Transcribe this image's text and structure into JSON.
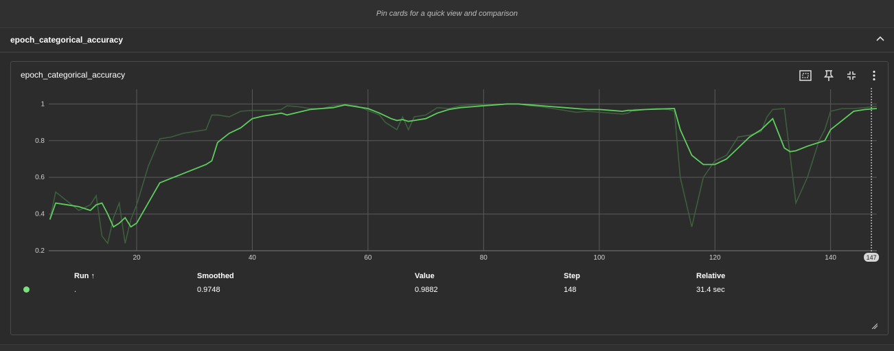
{
  "banner": {
    "text": "Pin cards for a quick view and comparison"
  },
  "group": {
    "title": "epoch_categorical_accuracy"
  },
  "card": {
    "title": "epoch_categorical_accuracy"
  },
  "icons": {
    "collapse": "chevron-up-icon",
    "fit": "fit-to-domain-icon",
    "pin": "pin-icon",
    "fullscreen": "exit-fullscreen-icon",
    "more": "more-vert-icon",
    "resize": "resize-handle-icon"
  },
  "colors": {
    "smoothed": "#5fce5f",
    "raw": "#3d5e3d",
    "run_dot": "#7ce17c"
  },
  "table": {
    "headers": {
      "run": "Run ↑",
      "smoothed": "Smoothed",
      "value": "Value",
      "step": "Step",
      "relative": "Relative"
    },
    "row": {
      "run": ".",
      "smoothed": "0.9748",
      "value": "0.9882",
      "step": "148",
      "relative": "31.4 sec"
    }
  },
  "chart_data": {
    "type": "line",
    "title": "epoch_categorical_accuracy",
    "xlabel": "",
    "ylabel": "",
    "xlim": [
      4.8,
      148
    ],
    "ylim": [
      0.2,
      1.08
    ],
    "x_ticks": [
      20,
      40,
      60,
      80,
      100,
      120,
      140
    ],
    "y_ticks": [
      0.2,
      0.4,
      0.6,
      0.8,
      1
    ],
    "hover_step_label": "147",
    "grid": true,
    "series": [
      {
        "role": "raw",
        "x": [
          5,
          6,
          8,
          10,
          12,
          13,
          14,
          15,
          16,
          17,
          18,
          19,
          20,
          22,
          24,
          26,
          28,
          30,
          32,
          33,
          34,
          36,
          38,
          40,
          42,
          44,
          45,
          46,
          48,
          50,
          52,
          54,
          56,
          58,
          60,
          62,
          63,
          64,
          65,
          66,
          67,
          68,
          70,
          72,
          74,
          76,
          78,
          80,
          82,
          84,
          86,
          88,
          90,
          92,
          94,
          96,
          98,
          100,
          102,
          104,
          105,
          106,
          108,
          110,
          112,
          113,
          114,
          116,
          118,
          120,
          122,
          123,
          124,
          126,
          128,
          129,
          130,
          132,
          133,
          134,
          136,
          138,
          139,
          140,
          142,
          144,
          146,
          148
        ],
        "y": [
          0.37,
          0.52,
          0.47,
          0.42,
          0.45,
          0.5,
          0.28,
          0.24,
          0.38,
          0.46,
          0.24,
          0.37,
          0.45,
          0.66,
          0.81,
          0.82,
          0.84,
          0.85,
          0.86,
          0.94,
          0.94,
          0.93,
          0.96,
          0.965,
          0.965,
          0.965,
          0.97,
          0.99,
          0.985,
          0.975,
          0.975,
          0.99,
          0.995,
          0.99,
          0.965,
          0.94,
          0.9,
          0.88,
          0.86,
          0.93,
          0.86,
          0.93,
          0.94,
          0.98,
          0.975,
          0.99,
          0.995,
          0.995,
          0.995,
          1.0,
          1.0,
          0.99,
          0.985,
          0.975,
          0.965,
          0.955,
          0.96,
          0.955,
          0.95,
          0.945,
          0.95,
          0.97,
          0.97,
          0.975,
          0.97,
          0.96,
          0.6,
          0.33,
          0.6,
          0.69,
          0.72,
          0.77,
          0.82,
          0.83,
          0.85,
          0.93,
          0.97,
          0.975,
          0.72,
          0.46,
          0.6,
          0.8,
          0.86,
          0.96,
          0.975,
          0.975,
          0.98,
          0.988
        ]
      },
      {
        "role": "smoothed",
        "x": [
          5,
          6,
          8,
          10,
          12,
          13,
          14,
          15,
          16,
          17,
          18,
          19,
          20,
          24,
          28,
          32,
          33,
          34,
          36,
          38,
          40,
          42,
          44,
          45,
          46,
          48,
          50,
          52,
          54,
          56,
          58,
          60,
          62,
          64,
          65,
          66,
          67,
          68,
          70,
          72,
          74,
          76,
          78,
          80,
          82,
          84,
          86,
          88,
          90,
          92,
          94,
          96,
          98,
          100,
          102,
          104,
          105,
          106,
          108,
          110,
          112,
          113,
          114,
          116,
          118,
          120,
          122,
          123,
          124,
          126,
          128,
          129,
          130,
          132,
          133,
          134,
          136,
          138,
          139,
          140,
          142,
          144,
          146,
          148
        ],
        "y": [
          0.37,
          0.46,
          0.45,
          0.44,
          0.42,
          0.45,
          0.46,
          0.4,
          0.33,
          0.35,
          0.38,
          0.33,
          0.35,
          0.57,
          0.62,
          0.67,
          0.69,
          0.79,
          0.84,
          0.87,
          0.92,
          0.935,
          0.945,
          0.95,
          0.94,
          0.955,
          0.97,
          0.975,
          0.98,
          0.995,
          0.985,
          0.975,
          0.95,
          0.92,
          0.91,
          0.915,
          0.905,
          0.91,
          0.92,
          0.95,
          0.97,
          0.98,
          0.985,
          0.99,
          0.995,
          1.0,
          1.0,
          0.995,
          0.99,
          0.985,
          0.98,
          0.975,
          0.97,
          0.97,
          0.965,
          0.96,
          0.965,
          0.965,
          0.97,
          0.972,
          0.974,
          0.975,
          0.86,
          0.72,
          0.67,
          0.67,
          0.7,
          0.73,
          0.76,
          0.82,
          0.86,
          0.89,
          0.92,
          0.76,
          0.74,
          0.745,
          0.77,
          0.79,
          0.8,
          0.86,
          0.91,
          0.96,
          0.97,
          0.975
        ]
      }
    ]
  }
}
